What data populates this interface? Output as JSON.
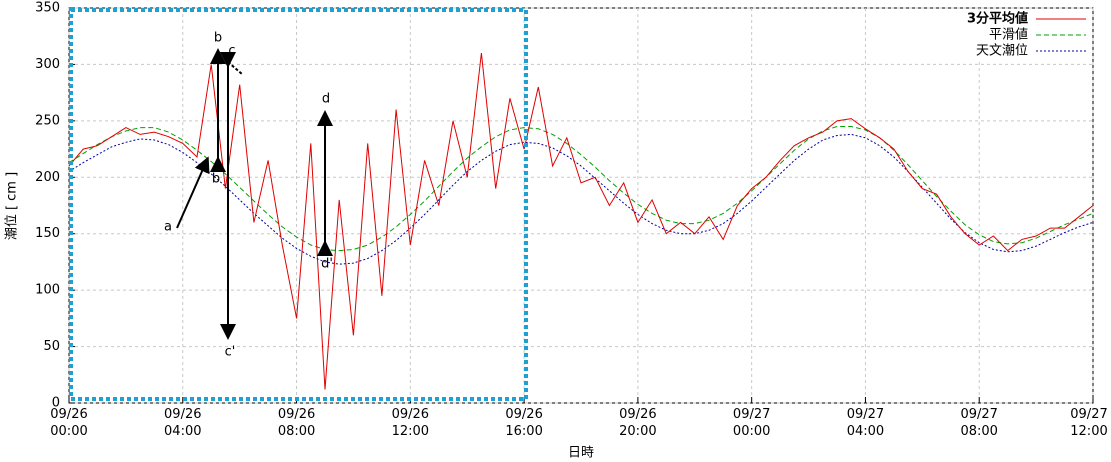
{
  "chart_data": {
    "type": "line",
    "ylabel": "潮位 [ cm ]",
    "xlabel": "日時",
    "x": [
      "09/26 00:00",
      "09/26 00:30",
      "09/26 01:00",
      "09/26 01:30",
      "09/26 02:00",
      "09/26 02:30",
      "09/26 03:00",
      "09/26 03:30",
      "09/26 04:00",
      "09/26 04:30",
      "09/26 05:00",
      "09/26 05:30",
      "09/26 06:00",
      "09/26 06:30",
      "09/26 07:00",
      "09/26 07:30",
      "09/26 08:00",
      "09/26 08:30",
      "09/26 09:00",
      "09/26 09:30",
      "09/26 10:00",
      "09/26 10:30",
      "09/26 11:00",
      "09/26 11:30",
      "09/26 12:00",
      "09/26 12:30",
      "09/26 13:00",
      "09/26 13:30",
      "09/26 14:00",
      "09/26 14:30",
      "09/26 15:00",
      "09/26 15:30",
      "09/26 16:00",
      "09/26 16:30",
      "09/26 17:00",
      "09/26 17:30",
      "09/26 18:00",
      "09/26 18:30",
      "09/26 19:00",
      "09/26 19:30",
      "09/26 20:00",
      "09/26 20:30",
      "09/26 21:00",
      "09/26 21:30",
      "09/26 22:00",
      "09/26 22:30",
      "09/26 23:00",
      "09/26 23:30",
      "09/27 00:00",
      "09/27 00:30",
      "09/27 01:00",
      "09/27 01:30",
      "09/27 02:00",
      "09/27 02:30",
      "09/27 03:00",
      "09/27 03:30",
      "09/27 04:00",
      "09/27 04:30",
      "09/27 05:00",
      "09/27 05:30",
      "09/27 06:00",
      "09/27 06:30",
      "09/27 07:00",
      "09/27 07:30",
      "09/27 08:00",
      "09/27 08:30",
      "09/27 09:00",
      "09/27 09:30",
      "09/27 10:00",
      "09/27 10:30",
      "09/27 11:00",
      "09/27 11:30",
      "09/27 12:00"
    ],
    "series": [
      {
        "name": "3分平均値",
        "color": "#e00000",
        "dash": "solid",
        "values": [
          210,
          225,
          228,
          236,
          244,
          238,
          240,
          236,
          230,
          218,
          300,
          190,
          282,
          160,
          215,
          140,
          75,
          230,
          12,
          180,
          60,
          230,
          95,
          260,
          140,
          215,
          175,
          250,
          200,
          310,
          190,
          270,
          225,
          280,
          210,
          235,
          195,
          200,
          175,
          195,
          160,
          180,
          150,
          160,
          150,
          165,
          145,
          175,
          190,
          200,
          215,
          228,
          235,
          240,
          250,
          252,
          243,
          235,
          225,
          205,
          190,
          185,
          165,
          150,
          140,
          148,
          135,
          145,
          148,
          155,
          155,
          165,
          175
        ]
      },
      {
        "name": "平滑値",
        "color": "#00a000",
        "dash": "dashed",
        "values": [
          213,
          221,
          229,
          236,
          241,
          244,
          244,
          240,
          233,
          224,
          214,
          203,
          191,
          179,
          167,
          156,
          147,
          140,
          136,
          135,
          136,
          140,
          147,
          156,
          167,
          179,
          192,
          205,
          217,
          227,
          236,
          242,
          244,
          243,
          238,
          230,
          220,
          209,
          197,
          186,
          176,
          168,
          162,
          159,
          159,
          162,
          168,
          177,
          188,
          200,
          212,
          224,
          234,
          241,
          245,
          245,
          242,
          235,
          224,
          211,
          197,
          183,
          170,
          158,
          149,
          143,
          141,
          142,
          146,
          152,
          158,
          163,
          168
        ]
      },
      {
        "name": "天文潮位",
        "color": "#0000a0",
        "dash": "dotted",
        "values": [
          205,
          213,
          220,
          227,
          231,
          234,
          233,
          229,
          222,
          213,
          203,
          192,
          180,
          168,
          157,
          146,
          137,
          130,
          125,
          123,
          124,
          128,
          135,
          144,
          155,
          167,
          180,
          193,
          205,
          215,
          223,
          229,
          231,
          230,
          226,
          219,
          210,
          199,
          188,
          177,
          167,
          159,
          153,
          150,
          150,
          153,
          159,
          168,
          179,
          191,
          203,
          215,
          225,
          233,
          237,
          238,
          235,
          228,
          218,
          205,
          191,
          177,
          163,
          151,
          142,
          136,
          134,
          135,
          139,
          145,
          151,
          156,
          160
        ]
      }
    ],
    "xlim": [
      "09/26 00:00",
      "09/27 12:00"
    ],
    "xticks": [
      "09/26 00:00",
      "09/26 04:00",
      "09/26 08:00",
      "09/26 12:00",
      "09/26 16:00",
      "09/26 20:00",
      "09/27 00:00",
      "09/27 04:00",
      "09/27 08:00",
      "09/27 12:00"
    ],
    "ylim": [
      0,
      350
    ],
    "yticks": [
      0,
      50,
      100,
      150,
      200,
      250,
      300,
      350
    ],
    "grid": true,
    "legend": "top-right",
    "annotations": [
      "a",
      "b",
      "c",
      "d",
      "b",
      "c'",
      "d'"
    ]
  }
}
